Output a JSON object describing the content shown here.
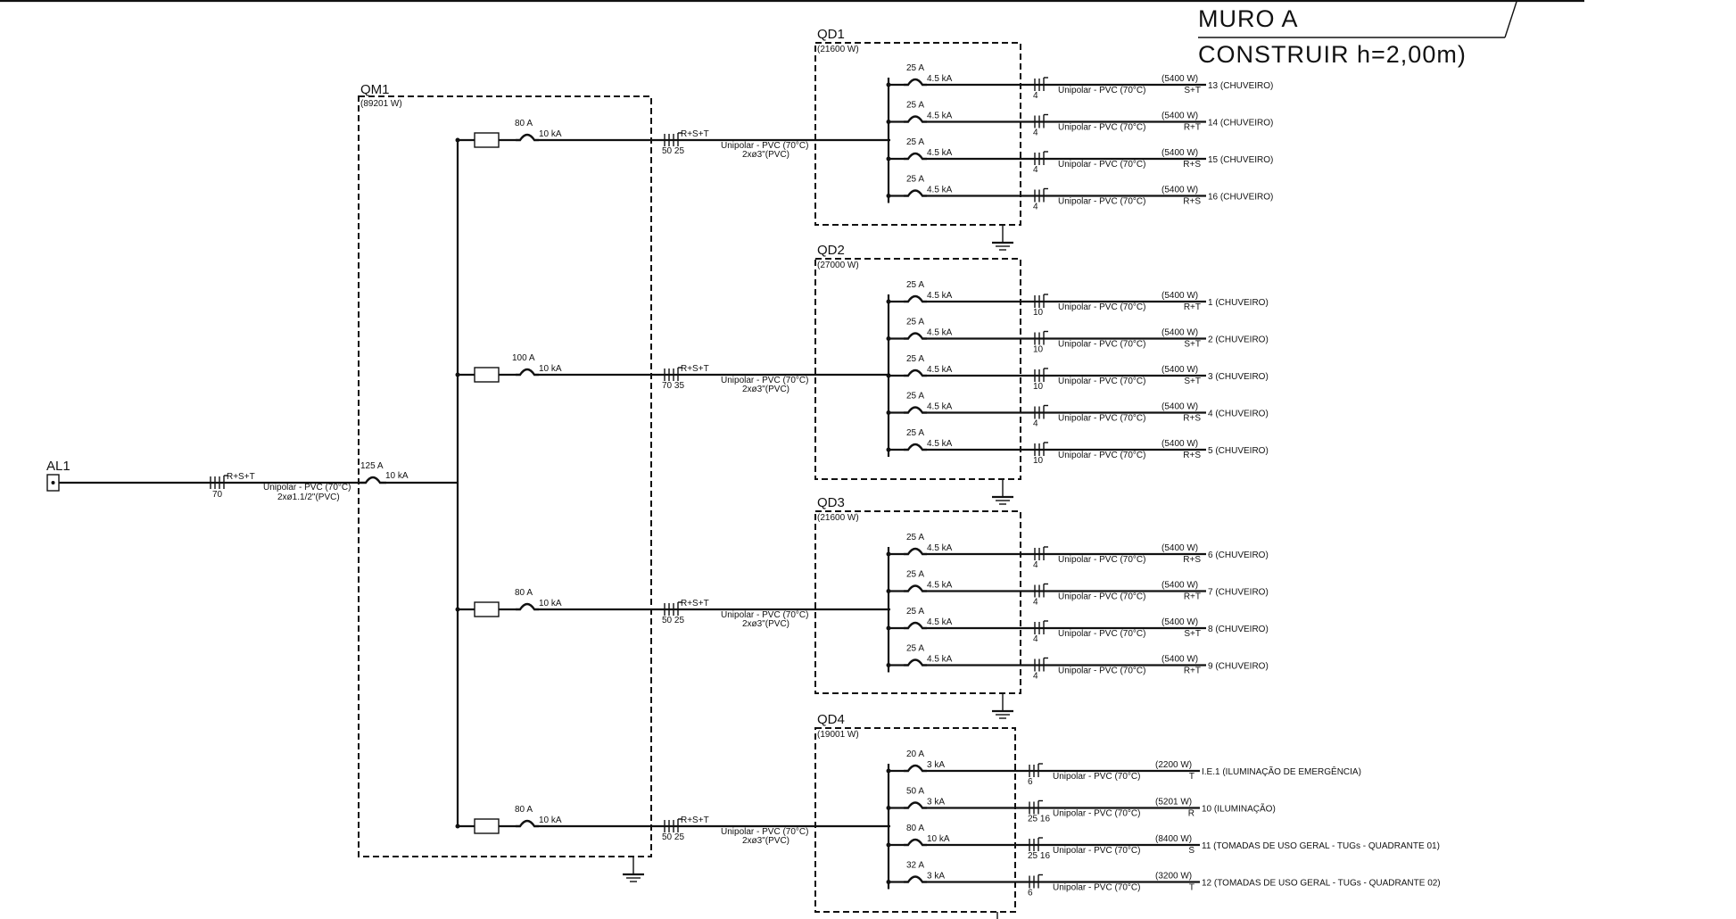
{
  "title_block": {
    "line1": "MURO  A",
    "line2": "CONSTRUIR  h=2,00m)"
  },
  "source": {
    "name": "AL1",
    "cable_phases": "R+S+T",
    "cable_section": "70",
    "cable_type": "Unipolar - PVC (70°C)",
    "conduit": "2xø1.1/2\"(PVC)",
    "breaker_current": "125 A",
    "breaker_kA": "10 kA"
  },
  "main_panel": {
    "name": "QM1",
    "power": "(89201 W)"
  },
  "feeders": [
    {
      "panel": "QD1",
      "breaker_current": "80 A",
      "breaker_kA": "10 kA",
      "phases": "R+S+T",
      "sections": "50 25",
      "cable_type": "Unipolar - PVC (70°C)",
      "conduit": "2xø3\"(PVC)"
    },
    {
      "panel": "QD2",
      "breaker_current": "100 A",
      "breaker_kA": "10 kA",
      "phases": "R+S+T",
      "sections": "70 35",
      "cable_type": "Unipolar - PVC (70°C)",
      "conduit": "2xø3\"(PVC)"
    },
    {
      "panel": "QD3",
      "breaker_current": "80 A",
      "breaker_kA": "10 kA",
      "phases": "R+S+T",
      "sections": "50 25",
      "cable_type": "Unipolar - PVC (70°C)",
      "conduit": "2xø3\"(PVC)"
    },
    {
      "panel": "QD4",
      "breaker_current": "80 A",
      "breaker_kA": "10 kA",
      "phases": "R+S+T",
      "sections": "50 25",
      "cable_type": "Unipolar - PVC (70°C)",
      "conduit": "2xø3\"(PVC)"
    }
  ],
  "panels": [
    {
      "name": "QD1",
      "power": "(21600 W)",
      "circuits": [
        {
          "breaker": "25 A",
          "kA": "4.5 kA",
          "section": "4",
          "cable": "Unipolar - PVC (70°C)",
          "power": "(5400 W)",
          "phases": "S+T",
          "label": "13 (CHUVEIRO)"
        },
        {
          "breaker": "25 A",
          "kA": "4.5 kA",
          "section": "4",
          "cable": "Unipolar - PVC (70°C)",
          "power": "(5400 W)",
          "phases": "R+T",
          "label": "14 (CHUVEIRO)"
        },
        {
          "breaker": "25 A",
          "kA": "4.5 kA",
          "section": "4",
          "cable": "Unipolar - PVC (70°C)",
          "power": "(5400 W)",
          "phases": "R+S",
          "label": "15 (CHUVEIRO)"
        },
        {
          "breaker": "25 A",
          "kA": "4.5 kA",
          "section": "4",
          "cable": "Unipolar - PVC (70°C)",
          "power": "(5400 W)",
          "phases": "R+S",
          "label": "16 (CHUVEIRO)"
        }
      ]
    },
    {
      "name": "QD2",
      "power": "(27000 W)",
      "circuits": [
        {
          "breaker": "25 A",
          "kA": "4.5 kA",
          "section": "10",
          "cable": "Unipolar - PVC (70°C)",
          "power": "(5400 W)",
          "phases": "R+T",
          "label": "1 (CHUVEIRO)"
        },
        {
          "breaker": "25 A",
          "kA": "4.5 kA",
          "section": "10",
          "cable": "Unipolar - PVC (70°C)",
          "power": "(5400 W)",
          "phases": "S+T",
          "label": "2 (CHUVEIRO)"
        },
        {
          "breaker": "25 A",
          "kA": "4.5 kA",
          "section": "10",
          "cable": "Unipolar - PVC (70°C)",
          "power": "(5400 W)",
          "phases": "S+T",
          "label": "3 (CHUVEIRO)"
        },
        {
          "breaker": "25 A",
          "kA": "4.5 kA",
          "section": "4",
          "cable": "Unipolar - PVC (70°C)",
          "power": "(5400 W)",
          "phases": "R+S",
          "label": "4 (CHUVEIRO)"
        },
        {
          "breaker": "25 A",
          "kA": "4.5 kA",
          "section": "10",
          "cable": "Unipolar - PVC (70°C)",
          "power": "(5400 W)",
          "phases": "R+S",
          "label": "5 (CHUVEIRO)"
        }
      ]
    },
    {
      "name": "QD3",
      "power": "(21600 W)",
      "circuits": [
        {
          "breaker": "25 A",
          "kA": "4.5 kA",
          "section": "4",
          "cable": "Unipolar - PVC (70°C)",
          "power": "(5400 W)",
          "phases": "R+S",
          "label": "6 (CHUVEIRO)"
        },
        {
          "breaker": "25 A",
          "kA": "4.5 kA",
          "section": "4",
          "cable": "Unipolar - PVC (70°C)",
          "power": "(5400 W)",
          "phases": "R+T",
          "label": "7 (CHUVEIRO)"
        },
        {
          "breaker": "25 A",
          "kA": "4.5 kA",
          "section": "4",
          "cable": "Unipolar - PVC (70°C)",
          "power": "(5400 W)",
          "phases": "S+T",
          "label": "8 (CHUVEIRO)"
        },
        {
          "breaker": "25 A",
          "kA": "4.5 kA",
          "section": "4",
          "cable": "Unipolar - PVC (70°C)",
          "power": "(5400 W)",
          "phases": "R+T",
          "label": "9 (CHUVEIRO)"
        }
      ]
    },
    {
      "name": "QD4",
      "power": "(19001 W)",
      "circuits": [
        {
          "breaker": "20 A",
          "kA": "3 kA",
          "section": "6",
          "cable": "Unipolar - PVC (70°C)",
          "power": "(2200 W)",
          "phases": "T",
          "label": "I.E.1 (ILUMINAÇÃO DE EMERGÊNCIA)"
        },
        {
          "breaker": "50 A",
          "kA": "3 kA",
          "section": "25 16",
          "cable": "Unipolar - PVC (70°C)",
          "power": "(5201 W)",
          "phases": "R",
          "label": "10 (ILUMINAÇÃO)"
        },
        {
          "breaker": "80 A",
          "kA": "10 kA",
          "section": "25 16",
          "cable": "Unipolar - PVC (70°C)",
          "power": "(8400 W)",
          "phases": "S",
          "label": "11 (TOMADAS DE USO GERAL - TUGs - QUADRANTE 01)"
        },
        {
          "breaker": "32 A",
          "kA": "3 kA",
          "section": "6",
          "cable": "Unipolar - PVC (70°C)",
          "power": "(3200 W)",
          "phases": "T",
          "label": "12 (TOMADAS DE USO GERAL - TUGs - QUADRANTE 02)"
        }
      ]
    }
  ]
}
